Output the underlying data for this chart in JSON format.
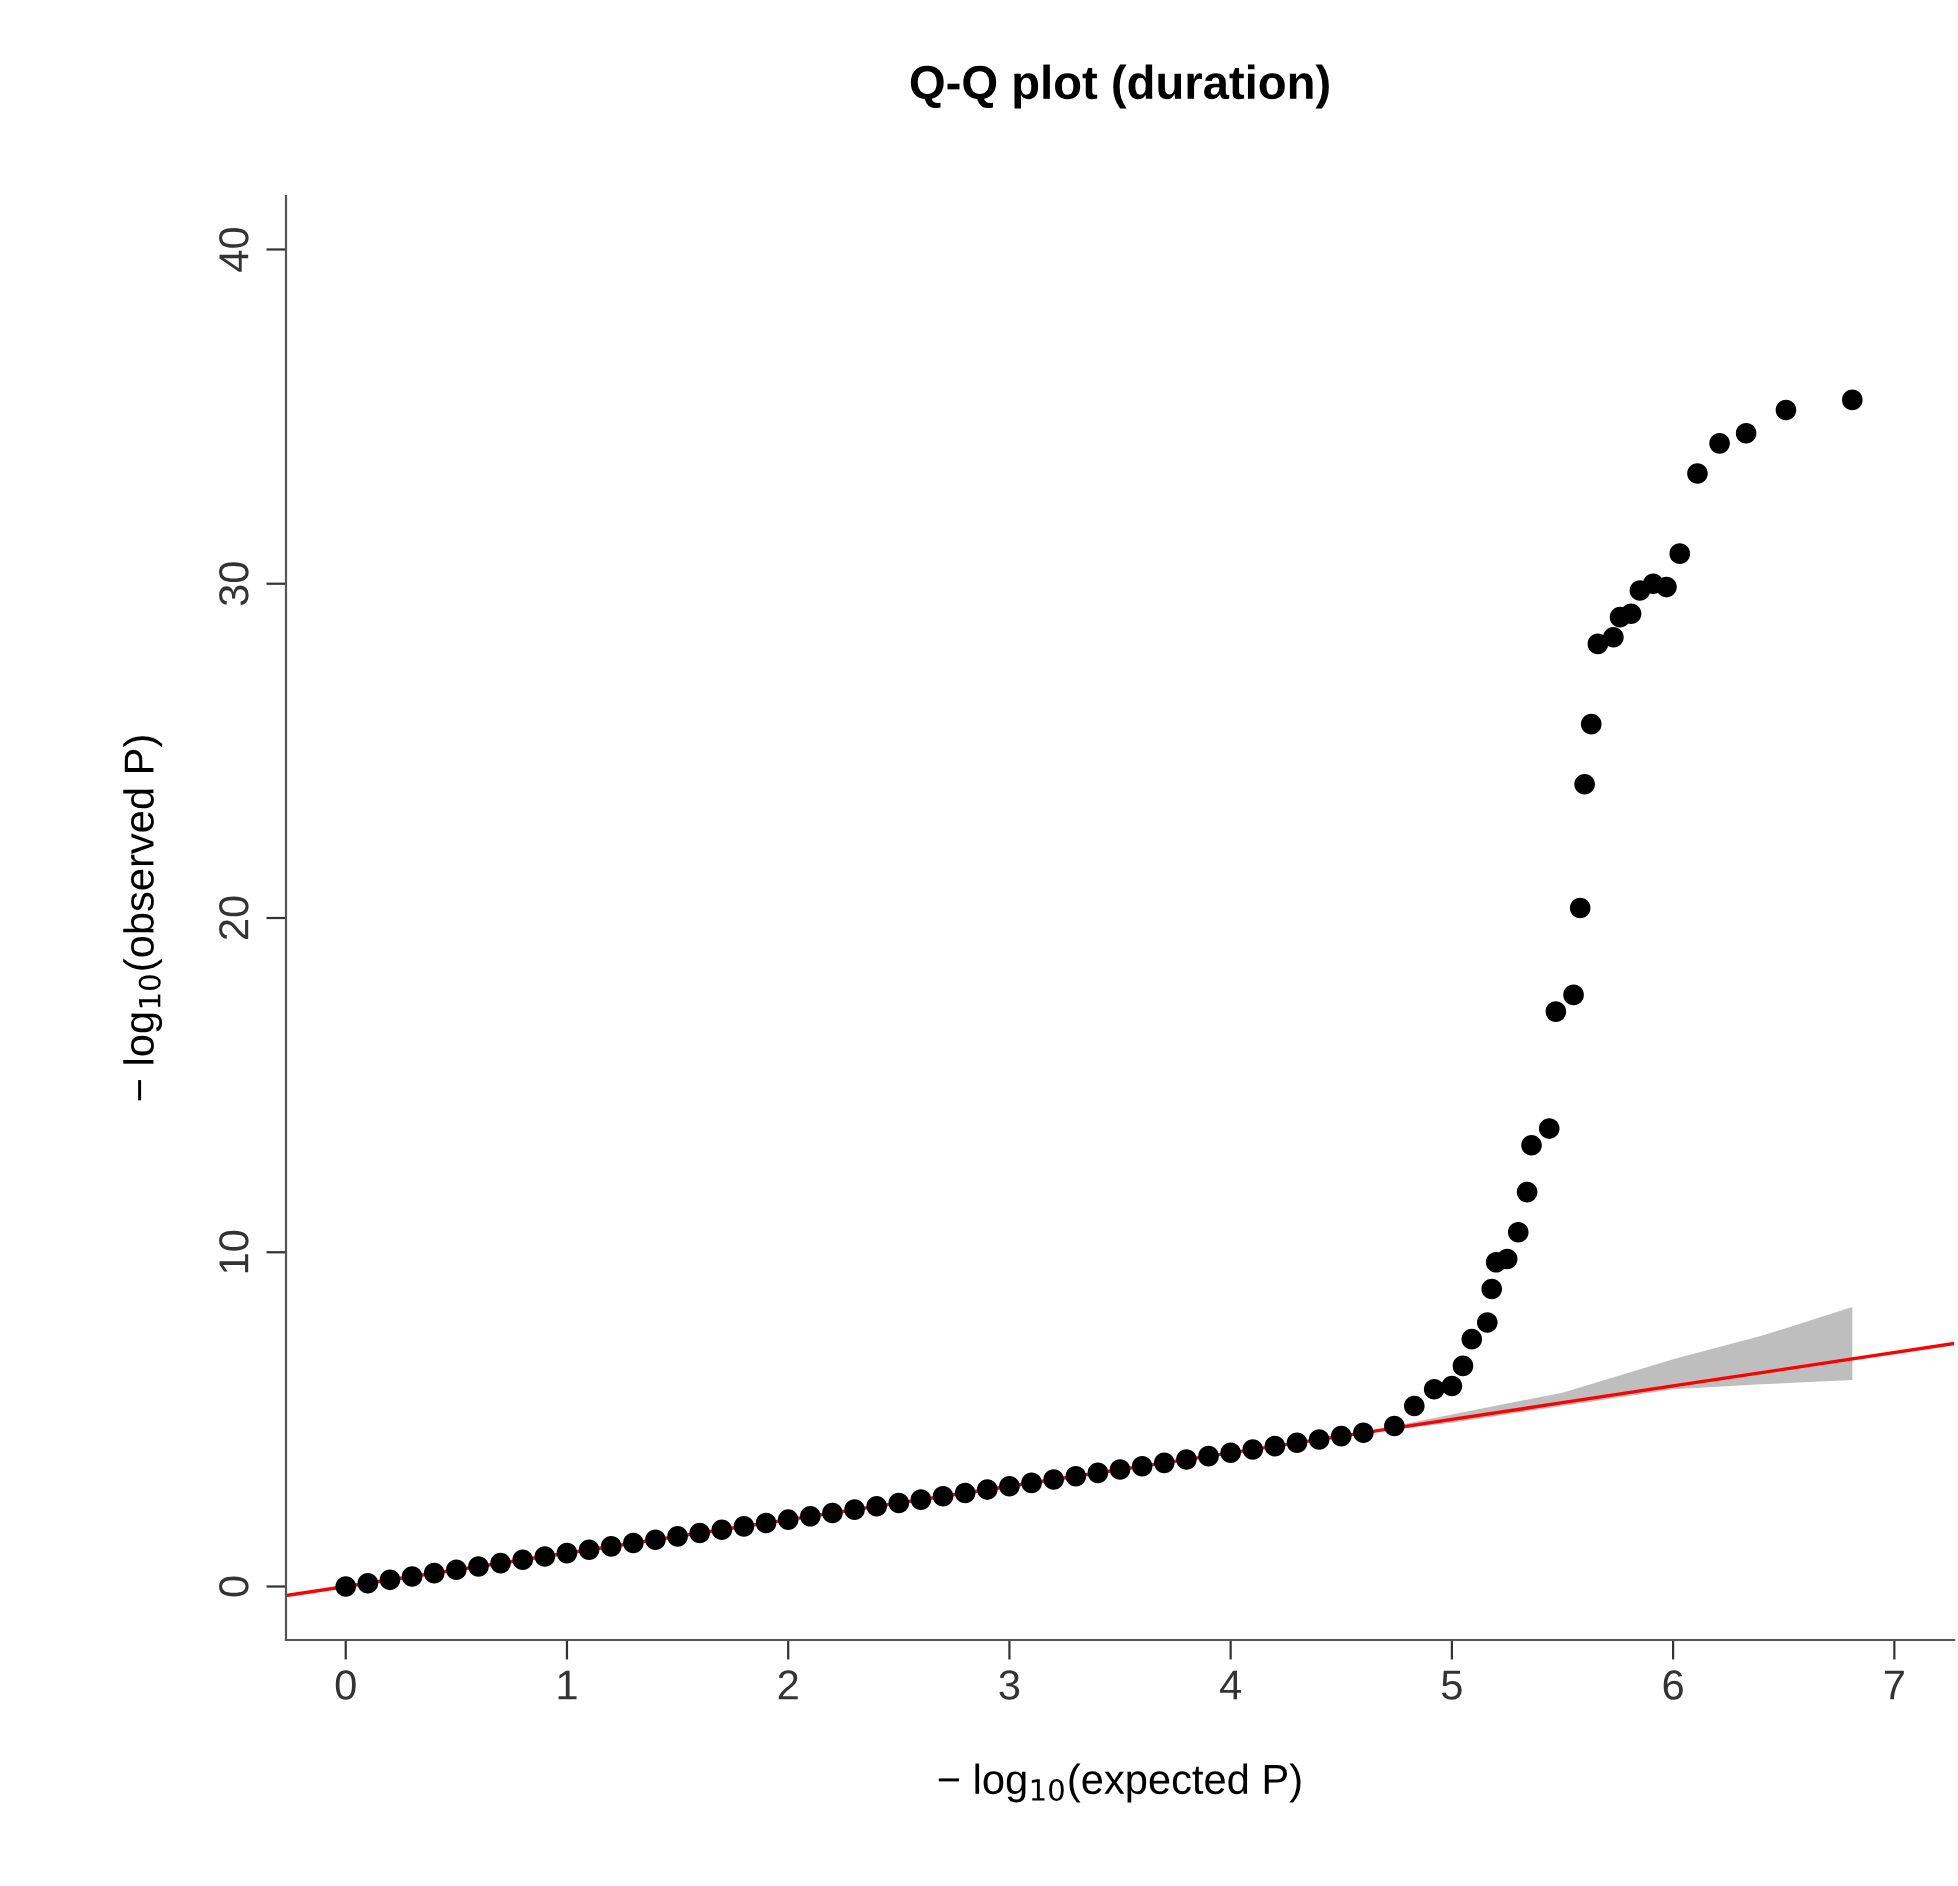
{
  "chart_data": {
    "type": "scatter",
    "title": "Q-Q plot (duration)",
    "xlabel": "− log$_{10}$(expected P)",
    "ylabel": "− log$_{10}$(observed P)",
    "xlim": [
      -0.27,
      7.27
    ],
    "ylim": [
      -1.6,
      41.6
    ],
    "xticks": [
      0,
      1,
      2,
      3,
      4,
      5,
      6,
      7
    ],
    "yticks": [
      0,
      10,
      20,
      30,
      40
    ],
    "grid": false,
    "legend": false,
    "marker": "circle",
    "series": [
      {
        "type": "line",
        "color": "#ff0000",
        "line_style": "solid",
        "marker": "none",
        "x": [
          -0.27,
          4.74,
          5.0,
          5.5,
          6.0,
          6.4,
          6.81,
          7.27
        ],
        "values": [
          -0.27,
          4.74,
          5.0,
          5.5,
          6.0,
          6.4,
          6.81,
          7.27
        ],
        "lower": [
          null,
          4.7,
          4.9,
          5.4,
          5.9,
          6.05,
          6.18,
          null
        ],
        "upper": [
          null,
          4.8,
          5.15,
          5.8,
          6.8,
          7.5,
          8.36,
          null
        ]
      },
      {
        "color": "#000000",
        "x": [
          0,
          0.1,
          0.2,
          0.3,
          0.4,
          0.5,
          0.6,
          0.7,
          0.8,
          0.9,
          1.0,
          1.1,
          1.2,
          1.3,
          1.4,
          1.5,
          1.6,
          1.7,
          1.8,
          1.9,
          2.0,
          2.1,
          2.2,
          2.3,
          2.4,
          2.5,
          2.6,
          2.7,
          2.8,
          2.9,
          3.0,
          3.1,
          3.2,
          3.3,
          3.4,
          3.5,
          3.6,
          3.7,
          3.8,
          3.9,
          4.0,
          4.1,
          4.2,
          4.3,
          4.4,
          4.5,
          4.6,
          4.74,
          4.83,
          4.92,
          5.0,
          5.05,
          5.09,
          5.16,
          5.18,
          5.2,
          5.25,
          5.3,
          5.34,
          5.36,
          5.44,
          5.47,
          5.55,
          5.58,
          5.6,
          5.63,
          5.66,
          5.73,
          5.76,
          5.81,
          5.85,
          5.91,
          5.97,
          6.03,
          6.11,
          6.21,
          6.33,
          6.51,
          6.81
        ],
        "values": [
          0,
          0.1,
          0.2,
          0.3,
          0.4,
          0.5,
          0.6,
          0.7,
          0.8,
          0.9,
          1.0,
          1.1,
          1.2,
          1.3,
          1.4,
          1.5,
          1.6,
          1.7,
          1.8,
          1.9,
          2.0,
          2.1,
          2.2,
          2.3,
          2.4,
          2.5,
          2.6,
          2.7,
          2.8,
          2.9,
          3.0,
          3.1,
          3.2,
          3.3,
          3.4,
          3.5,
          3.6,
          3.7,
          3.8,
          3.9,
          4.0,
          4.1,
          4.2,
          4.3,
          4.4,
          4.5,
          4.6,
          4.8,
          5.4,
          5.9,
          6.0,
          6.6,
          7.4,
          7.9,
          8.9,
          9.7,
          9.8,
          10.6,
          11.8,
          13.2,
          13.7,
          17.2,
          17.7,
          20.3,
          24.0,
          25.8,
          28.2,
          28.4,
          29.0,
          29.1,
          29.8,
          30.0,
          29.9,
          30.9,
          33.3,
          34.2,
          34.5,
          35.2,
          35.5
        ]
      }
    ]
  }
}
